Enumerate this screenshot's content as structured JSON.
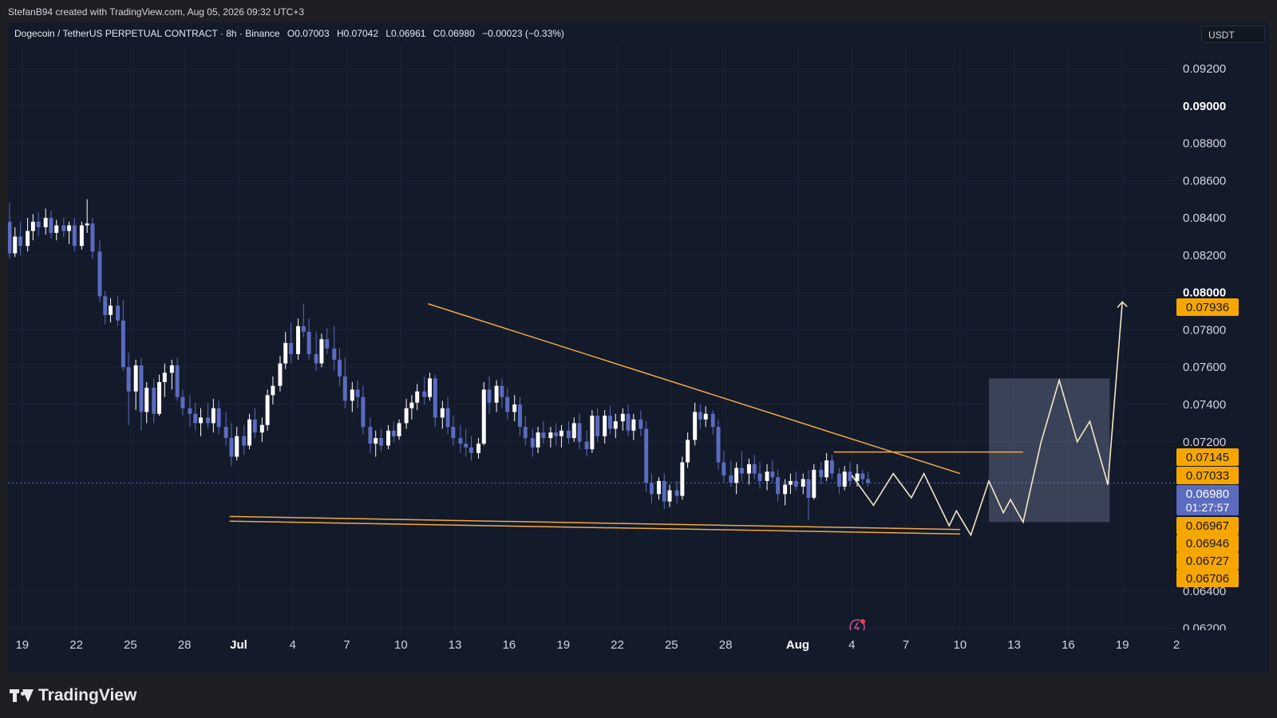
{
  "header": {
    "credit": "StefanB94 created with TradingView.com, Aug 05, 2026 09:32 UTC+3"
  },
  "legend": {
    "symbol": "Dogecoin / TetherUS PERPETUAL CONTRACT · 8h · Binance",
    "open": "O0.07003",
    "high": "H0.07042",
    "low": "L0.06961",
    "close": "C0.06980",
    "change": "−0.00023 (−0.33%)"
  },
  "currency_button": "USDT",
  "brand": "TradingView",
  "colors": {
    "background": "#131a2a",
    "grid": "#1c2435",
    "bull_candle": "#ffffff",
    "bear_candle": "#5b6bbf",
    "trendline": "#f0a848",
    "projection": "#f2e6c8",
    "box": "#8b98b5",
    "price_badge": "#f7a600",
    "current_badge": "#5b6bbf"
  },
  "icons": {
    "alert": "lightning-icon",
    "logo": "tradingview-logo-icon"
  },
  "chart_data": {
    "type": "candlestick",
    "title": "",
    "timeframe": "8h",
    "x_axis": {
      "ticks": [
        {
          "label": "19",
          "day": 19
        },
        {
          "label": "22",
          "day": 22
        },
        {
          "label": "25",
          "day": 25
        },
        {
          "label": "28",
          "day": 28
        },
        {
          "label": "Jul",
          "day": 31,
          "bold": true
        },
        {
          "label": "4",
          "day": 34
        },
        {
          "label": "7",
          "day": 37
        },
        {
          "label": "10",
          "day": 40
        },
        {
          "label": "13",
          "day": 43
        },
        {
          "label": "16",
          "day": 46
        },
        {
          "label": "19",
          "day": 49
        },
        {
          "label": "22",
          "day": 52
        },
        {
          "label": "25",
          "day": 55
        },
        {
          "label": "28",
          "day": 58
        },
        {
          "label": "Aug",
          "day": 62,
          "bold": true
        },
        {
          "label": "4",
          "day": 65
        },
        {
          "label": "7",
          "day": 68
        },
        {
          "label": "10",
          "day": 71
        },
        {
          "label": "13",
          "day": 74
        },
        {
          "label": "16",
          "day": 77
        },
        {
          "label": "19",
          "day": 80
        },
        {
          "label": "2",
          "day": 83
        }
      ],
      "range": [
        18.3,
        83
      ]
    },
    "y_axis": {
      "ticks": [
        0.092,
        0.09,
        0.088,
        0.086,
        0.084,
        0.082,
        0.08,
        0.078,
        0.076,
        0.074,
        0.072,
        0.064,
        0.062
      ],
      "tick_labels": [
        "0.09200",
        "0.09000",
        "0.08800",
        "0.08600",
        "0.08400",
        "0.08200",
        "0.08000",
        "0.07800",
        "0.07600",
        "0.07400",
        "0.07200",
        "0.06400",
        "0.06200"
      ],
      "bold_ticks": [
        "0.09000",
        "0.08000"
      ],
      "range": [
        0.0619,
        0.0932
      ]
    },
    "price_badges": [
      {
        "label": "0.07936",
        "value": 0.07936
      },
      {
        "label": "0.07145",
        "value": 0.07145
      },
      {
        "label": "0.07033",
        "value": 0.07033
      },
      {
        "label": "0.06967",
        "value": 0.06967
      },
      {
        "label": "0.06946",
        "value": 0.06946
      },
      {
        "label": "0.06727",
        "value": 0.06727
      },
      {
        "label": "0.06706",
        "value": 0.06706
      }
    ],
    "current_price": {
      "label": "0.06980",
      "countdown": "01:27:57",
      "value": 0.0698
    },
    "trendlines": [
      {
        "name": "",
        "from": [
          41.5,
          0.0794
        ],
        "to": [
          71,
          0.0703
        ]
      },
      {
        "name": "",
        "from": [
          30.5,
          0.068
        ],
        "to": [
          71,
          0.0673
        ]
      },
      {
        "name": "",
        "from": [
          30.5,
          0.06775
        ],
        "to": [
          71,
          0.06706
        ]
      },
      {
        "name": "",
        "from": [
          64,
          0.07145
        ],
        "to": [
          74.5,
          0.07145
        ]
      }
    ],
    "projection_path": [
      [
        65,
        0.0702
      ],
      [
        66.2,
        0.0686
      ],
      [
        67.3,
        0.0703
      ],
      [
        68.3,
        0.069
      ],
      [
        69,
        0.0703
      ],
      [
        70.4,
        0.0675
      ],
      [
        70.8,
        0.0683
      ],
      [
        71.6,
        0.067
      ],
      [
        72.6,
        0.0699
      ],
      [
        73.4,
        0.0682
      ],
      [
        73.8,
        0.0689
      ],
      [
        74.5,
        0.0677
      ],
      [
        75.5,
        0.072
      ],
      [
        76.5,
        0.0753
      ],
      [
        77.5,
        0.072
      ],
      [
        78.2,
        0.0731
      ],
      [
        79.2,
        0.0697
      ],
      [
        80,
        0.0795
      ]
    ],
    "target_box": {
      "x_from": 72.6,
      "x_to": 79.3,
      "y_from": 0.0677,
      "y_to": 0.0754
    },
    "candles": [
      [
        18.3,
        0.0838,
        0.0848,
        0.0818,
        0.0821
      ],
      [
        18.6,
        0.0821,
        0.0835,
        0.0819,
        0.083
      ],
      [
        18.9,
        0.083,
        0.0838,
        0.082,
        0.0825
      ],
      [
        19.3,
        0.0825,
        0.084,
        0.0822,
        0.0833
      ],
      [
        19.6,
        0.0833,
        0.0842,
        0.0828,
        0.0838
      ],
      [
        19.9,
        0.0838,
        0.0843,
        0.083,
        0.0835
      ],
      [
        20.3,
        0.0835,
        0.0845,
        0.0831,
        0.084
      ],
      [
        20.6,
        0.084,
        0.0844,
        0.0829,
        0.0832
      ],
      [
        20.9,
        0.0832,
        0.0839,
        0.0828,
        0.0836
      ],
      [
        21.3,
        0.0836,
        0.084,
        0.083,
        0.0833
      ],
      [
        21.6,
        0.0833,
        0.0838,
        0.0826,
        0.0836
      ],
      [
        21.9,
        0.0836,
        0.084,
        0.0822,
        0.0825
      ],
      [
        22.3,
        0.0825,
        0.0838,
        0.0823,
        0.0836
      ],
      [
        22.6,
        0.0836,
        0.085,
        0.0832,
        0.0837
      ],
      [
        22.9,
        0.0837,
        0.084,
        0.0818,
        0.0822
      ],
      [
        23.3,
        0.0822,
        0.0828,
        0.0795,
        0.0798
      ],
      [
        23.6,
        0.0798,
        0.0801,
        0.0783,
        0.0788
      ],
      [
        23.9,
        0.0788,
        0.0797,
        0.0784,
        0.0793
      ],
      [
        24.3,
        0.0793,
        0.0798,
        0.0782,
        0.0785
      ],
      [
        24.6,
        0.0785,
        0.0796,
        0.0758,
        0.076
      ],
      [
        24.9,
        0.076,
        0.0768,
        0.0729,
        0.0747
      ],
      [
        25.3,
        0.0747,
        0.0764,
        0.0737,
        0.0761
      ],
      [
        25.6,
        0.0761,
        0.0765,
        0.0726,
        0.0736
      ],
      [
        25.9,
        0.0736,
        0.0752,
        0.073,
        0.0749
      ],
      [
        26.3,
        0.0749,
        0.0754,
        0.073,
        0.0735
      ],
      [
        26.6,
        0.0735,
        0.0756,
        0.0734,
        0.0752
      ],
      [
        26.9,
        0.0752,
        0.0762,
        0.0744,
        0.0757
      ],
      [
        27.3,
        0.0757,
        0.0764,
        0.0748,
        0.0761
      ],
      [
        27.6,
        0.0761,
        0.0765,
        0.0742,
        0.0744
      ],
      [
        27.9,
        0.0744,
        0.0748,
        0.0734,
        0.0738
      ],
      [
        28.3,
        0.0738,
        0.0745,
        0.0728,
        0.0735
      ],
      [
        28.6,
        0.0735,
        0.0741,
        0.0726,
        0.073
      ],
      [
        28.9,
        0.073,
        0.0738,
        0.0723,
        0.0733
      ],
      [
        29.3,
        0.0733,
        0.0741,
        0.0727,
        0.073
      ],
      [
        29.6,
        0.073,
        0.0743,
        0.0725,
        0.0738
      ],
      [
        29.9,
        0.0738,
        0.0742,
        0.0724,
        0.0728
      ],
      [
        30.3,
        0.0728,
        0.0736,
        0.0718,
        0.0722
      ],
      [
        30.6,
        0.0722,
        0.073,
        0.0707,
        0.0712
      ],
      [
        30.9,
        0.0712,
        0.0728,
        0.071,
        0.0723
      ],
      [
        31.3,
        0.0723,
        0.0729,
        0.0713,
        0.0718
      ],
      [
        31.6,
        0.0718,
        0.0735,
        0.0716,
        0.0732
      ],
      [
        31.9,
        0.0732,
        0.0738,
        0.0722,
        0.0725
      ],
      [
        32.3,
        0.0725,
        0.0733,
        0.072,
        0.0729
      ],
      [
        32.6,
        0.0729,
        0.0748,
        0.0726,
        0.0745
      ],
      [
        32.9,
        0.0745,
        0.0755,
        0.074,
        0.075
      ],
      [
        33.3,
        0.075,
        0.0766,
        0.0747,
        0.0762
      ],
      [
        33.6,
        0.0762,
        0.0779,
        0.0759,
        0.0773
      ],
      [
        33.9,
        0.0773,
        0.0784,
        0.0762,
        0.0767
      ],
      [
        34.3,
        0.0767,
        0.0786,
        0.0764,
        0.0782
      ],
      [
        34.6,
        0.0782,
        0.0794,
        0.0776,
        0.0779
      ],
      [
        34.9,
        0.0779,
        0.0786,
        0.0764,
        0.0767
      ],
      [
        35.3,
        0.0767,
        0.0779,
        0.0758,
        0.0762
      ],
      [
        35.6,
        0.0762,
        0.0778,
        0.076,
        0.0775
      ],
      [
        35.9,
        0.0775,
        0.0781,
        0.0767,
        0.077
      ],
      [
        36.3,
        0.077,
        0.0782,
        0.0758,
        0.0764
      ],
      [
        36.6,
        0.0764,
        0.077,
        0.075,
        0.0755
      ],
      [
        36.9,
        0.0755,
        0.0765,
        0.0738,
        0.0742
      ],
      [
        37.3,
        0.0742,
        0.0752,
        0.0736,
        0.0748
      ],
      [
        37.6,
        0.0748,
        0.0753,
        0.0738,
        0.0744
      ],
      [
        37.9,
        0.0744,
        0.075,
        0.0724,
        0.0728
      ],
      [
        38.3,
        0.0728,
        0.0733,
        0.0714,
        0.0719
      ],
      [
        38.6,
        0.0719,
        0.0726,
        0.0712,
        0.0722
      ],
      [
        38.9,
        0.0722,
        0.0727,
        0.0715,
        0.0718
      ],
      [
        39.3,
        0.0718,
        0.0729,
        0.0716,
        0.0726
      ],
      [
        39.6,
        0.0726,
        0.0731,
        0.072,
        0.0723
      ],
      [
        39.9,
        0.0723,
        0.0732,
        0.0721,
        0.073
      ],
      [
        40.3,
        0.073,
        0.0743,
        0.0727,
        0.0738
      ],
      [
        40.6,
        0.0738,
        0.0745,
        0.0732,
        0.0741
      ],
      [
        40.9,
        0.0741,
        0.0751,
        0.0737,
        0.0747
      ],
      [
        41.3,
        0.0747,
        0.0755,
        0.074,
        0.0744
      ],
      [
        41.6,
        0.0744,
        0.0757,
        0.0742,
        0.0754
      ],
      [
        41.9,
        0.0754,
        0.0756,
        0.0728,
        0.0733
      ],
      [
        42.3,
        0.0733,
        0.0742,
        0.0727,
        0.0738
      ],
      [
        42.6,
        0.0738,
        0.0744,
        0.0724,
        0.0728
      ],
      [
        42.9,
        0.0728,
        0.0734,
        0.0718,
        0.0722
      ],
      [
        43.3,
        0.0722,
        0.0729,
        0.0714,
        0.0719
      ],
      [
        43.6,
        0.0719,
        0.0727,
        0.0712,
        0.0717
      ],
      [
        43.9,
        0.0717,
        0.0723,
        0.071,
        0.0714
      ],
      [
        44.3,
        0.0714,
        0.0722,
        0.0711,
        0.0719
      ],
      [
        44.6,
        0.0719,
        0.0752,
        0.0718,
        0.0748
      ],
      [
        44.9,
        0.0748,
        0.0755,
        0.0735,
        0.0741
      ],
      [
        45.3,
        0.0741,
        0.0753,
        0.0736,
        0.075
      ],
      [
        45.6,
        0.075,
        0.0754,
        0.0738,
        0.0744
      ],
      [
        45.9,
        0.0744,
        0.0749,
        0.0732,
        0.0736
      ],
      [
        46.3,
        0.0736,
        0.0745,
        0.0731,
        0.074
      ],
      [
        46.6,
        0.074,
        0.0744,
        0.0723,
        0.0728
      ],
      [
        46.9,
        0.0728,
        0.0734,
        0.0718,
        0.0722
      ],
      [
        47.3,
        0.0722,
        0.0727,
        0.0712,
        0.0717
      ],
      [
        47.6,
        0.0717,
        0.0728,
        0.0714,
        0.0725
      ],
      [
        47.9,
        0.0725,
        0.0731,
        0.0719,
        0.0722
      ],
      [
        48.3,
        0.0722,
        0.0728,
        0.0717,
        0.0725
      ],
      [
        48.6,
        0.0725,
        0.073,
        0.0718,
        0.0723
      ],
      [
        48.9,
        0.0723,
        0.0729,
        0.0717,
        0.0726
      ],
      [
        49.3,
        0.0726,
        0.0731,
        0.0719,
        0.0722
      ],
      [
        49.6,
        0.0722,
        0.0733,
        0.072,
        0.073
      ],
      [
        49.9,
        0.073,
        0.0735,
        0.0716,
        0.072
      ],
      [
        50.3,
        0.072,
        0.0726,
        0.0712,
        0.0716
      ],
      [
        50.6,
        0.0716,
        0.0737,
        0.0714,
        0.0734
      ],
      [
        50.9,
        0.0734,
        0.0738,
        0.072,
        0.0723
      ],
      [
        51.3,
        0.0723,
        0.0737,
        0.0719,
        0.0734
      ],
      [
        51.6,
        0.0734,
        0.0739,
        0.0724,
        0.0727
      ],
      [
        51.9,
        0.0727,
        0.0735,
        0.0722,
        0.0731
      ],
      [
        52.3,
        0.0731,
        0.0738,
        0.0726,
        0.0735
      ],
      [
        52.6,
        0.0735,
        0.074,
        0.0723,
        0.0726
      ],
      [
        52.9,
        0.0726,
        0.0735,
        0.0721,
        0.0732
      ],
      [
        53.3,
        0.0732,
        0.0737,
        0.0723,
        0.0727
      ],
      [
        53.6,
        0.0727,
        0.0731,
        0.0693,
        0.0698
      ],
      [
        53.9,
        0.0698,
        0.0703,
        0.0687,
        0.0692
      ],
      [
        54.3,
        0.0692,
        0.0701,
        0.0689,
        0.0699
      ],
      [
        54.6,
        0.0699,
        0.0703,
        0.0684,
        0.0688
      ],
      [
        54.9,
        0.0688,
        0.0697,
        0.0685,
        0.0694
      ],
      [
        55.3,
        0.0694,
        0.0699,
        0.0687,
        0.0691
      ],
      [
        55.6,
        0.0691,
        0.0712,
        0.0689,
        0.0709
      ],
      [
        55.9,
        0.0709,
        0.0725,
        0.0706,
        0.0721
      ],
      [
        56.3,
        0.0721,
        0.0741,
        0.0718,
        0.0736
      ],
      [
        56.6,
        0.0736,
        0.074,
        0.0727,
        0.0732
      ],
      [
        56.9,
        0.0732,
        0.0739,
        0.0728,
        0.0735
      ],
      [
        57.3,
        0.0735,
        0.0737,
        0.0724,
        0.0728
      ],
      [
        57.6,
        0.0728,
        0.0732,
        0.0705,
        0.0709
      ],
      [
        57.9,
        0.0709,
        0.0715,
        0.0698,
        0.0702
      ],
      [
        58.3,
        0.0702,
        0.071,
        0.0696,
        0.0698
      ],
      [
        58.6,
        0.0698,
        0.0709,
        0.0692,
        0.0706
      ],
      [
        58.9,
        0.0706,
        0.0715,
        0.0699,
        0.0703
      ],
      [
        59.3,
        0.0703,
        0.0711,
        0.0697,
        0.0708
      ],
      [
        59.6,
        0.0708,
        0.0713,
        0.07,
        0.0703
      ],
      [
        59.9,
        0.0703,
        0.0709,
        0.0695,
        0.0699
      ],
      [
        60.3,
        0.0699,
        0.0708,
        0.0694,
        0.0704
      ],
      [
        60.6,
        0.0704,
        0.071,
        0.0698,
        0.0701
      ],
      [
        60.9,
        0.0701,
        0.0705,
        0.0688,
        0.0692
      ],
      [
        61.3,
        0.0692,
        0.07,
        0.0686,
        0.0697
      ],
      [
        61.6,
        0.0697,
        0.0703,
        0.0692,
        0.0699
      ],
      [
        61.9,
        0.0699,
        0.0704,
        0.0694,
        0.0696
      ],
      [
        62.3,
        0.0696,
        0.0703,
        0.0692,
        0.07
      ],
      [
        62.6,
        0.07,
        0.0705,
        0.0678,
        0.069
      ],
      [
        62.9,
        0.069,
        0.0708,
        0.0689,
        0.0705
      ],
      [
        63.3,
        0.0705,
        0.0709,
        0.0697,
        0.0701
      ],
      [
        63.6,
        0.0701,
        0.0714,
        0.0699,
        0.071
      ],
      [
        63.9,
        0.071,
        0.0713,
        0.07,
        0.0703
      ],
      [
        64.3,
        0.0703,
        0.0706,
        0.0692,
        0.0696
      ],
      [
        64.6,
        0.0696,
        0.0707,
        0.0694,
        0.0704
      ],
      [
        64.9,
        0.0704,
        0.0709,
        0.0696,
        0.0699
      ],
      [
        65.3,
        0.0699,
        0.0708,
        0.0696,
        0.0703
      ],
      [
        65.6,
        0.0703,
        0.0705,
        0.0697,
        0.07
      ],
      [
        65.9,
        0.07,
        0.0704,
        0.0696,
        0.0698
      ]
    ]
  }
}
